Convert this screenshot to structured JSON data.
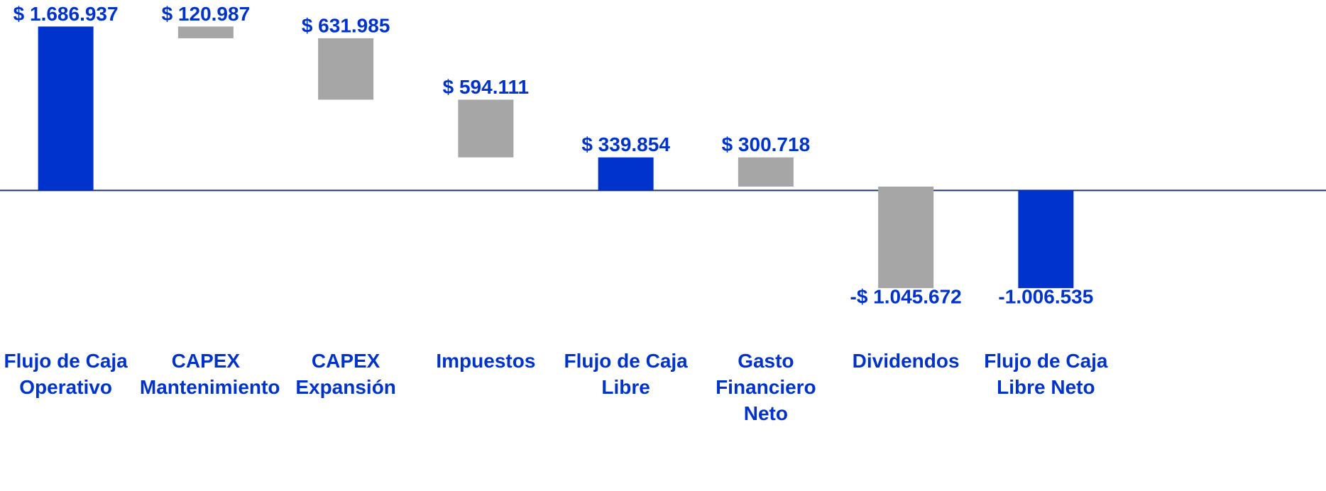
{
  "chart_data": {
    "type": "waterfall",
    "categories": [
      "Flujo de Caja Operativo",
      "CAPEX Mantenimiento",
      "CAPEX Expansión",
      "Impuestos",
      "Flujo de Caja Libre",
      "Gasto Financiero Neto",
      "Dividendos",
      "Flujo de Caja Libre Neto"
    ],
    "values": [
      1686937,
      -120987,
      -631985,
      -594111,
      339854,
      -300718,
      -1045672,
      -1006535
    ],
    "value_labels": [
      "$ 1.686.937",
      "$ 120.987",
      "$ 631.985",
      "$ 594.111",
      "$ 339.854",
      "$ 300.718",
      "-$ 1.045.672",
      "-1.006.535"
    ],
    "measure": [
      "absolute",
      "relative",
      "relative",
      "relative",
      "total",
      "relative",
      "relative",
      "total"
    ],
    "total_color": "#0033cc",
    "change_color": "#a6a6a6",
    "axis_color": "#1f3864",
    "ylim": [
      -1400000,
      1960000
    ]
  }
}
